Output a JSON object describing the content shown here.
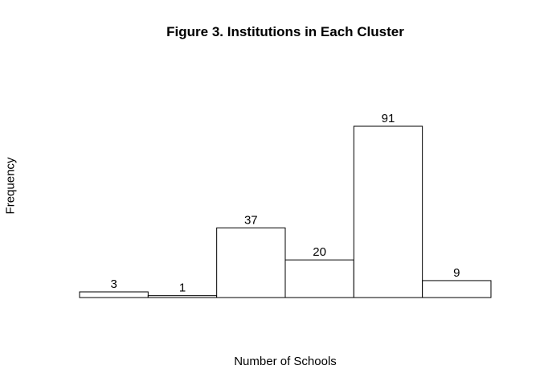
{
  "chart_data": {
    "type": "bar",
    "title": "Figure 3. Institutions in Each Cluster",
    "xlabel": "Number of Schools",
    "ylabel": "Frequency",
    "categories": [
      "",
      "",
      "",
      "",
      "",
      ""
    ],
    "values": [
      3,
      1,
      37,
      20,
      91,
      9
    ],
    "data_labels": [
      "3",
      "1",
      "37",
      "20",
      "91",
      "9"
    ],
    "ylim": [
      0,
      100
    ],
    "grid": false,
    "legend": "none",
    "bar_fill": "#ffffff",
    "bar_stroke": "#000000"
  }
}
